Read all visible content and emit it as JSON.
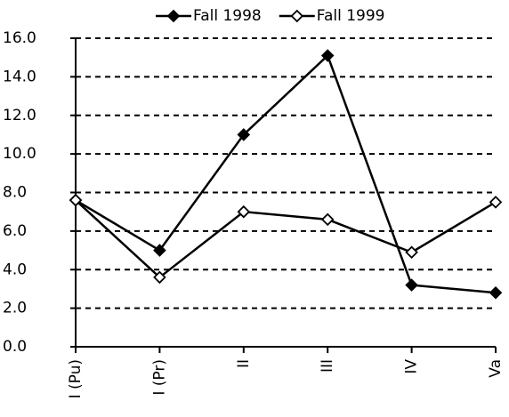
{
  "chart_data": {
    "type": "line",
    "categories": [
      "I (Pu)",
      "I (Pr)",
      "II",
      "III",
      "IV",
      "Va"
    ],
    "series": [
      {
        "name": "Fall 1998",
        "color": "#000000",
        "marker": "filled-diamond",
        "values": [
          7.6,
          5.0,
          11.0,
          15.1,
          3.2,
          2.8
        ]
      },
      {
        "name": "Fall 1999",
        "color": "#000000",
        "marker": "open-diamond",
        "values": [
          7.6,
          3.6,
          7.0,
          6.6,
          4.9,
          7.5
        ]
      }
    ],
    "ylim": [
      0,
      16
    ],
    "yticks": [
      {
        "value": 0,
        "label": "0.0"
      },
      {
        "value": 2,
        "label": "2.0"
      },
      {
        "value": 4,
        "label": "4.0"
      },
      {
        "value": 6,
        "label": "6.0"
      },
      {
        "value": 8,
        "label": "8.0"
      },
      {
        "value": 10,
        "label": "10.0"
      },
      {
        "value": 12,
        "label": "12.0"
      },
      {
        "value": 14,
        "label": "14.0"
      },
      {
        "value": 16,
        "label": "16.0"
      }
    ],
    "grid": true,
    "legend": "top"
  }
}
